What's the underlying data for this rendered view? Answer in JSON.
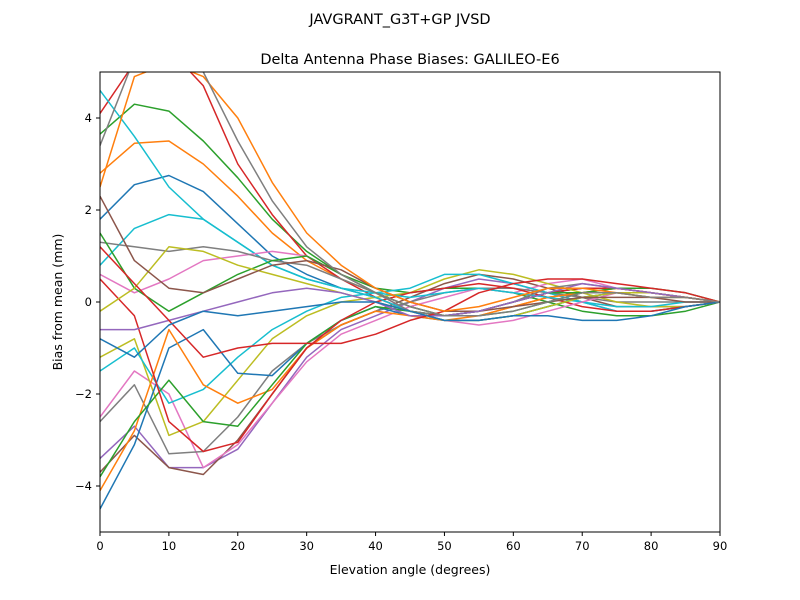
{
  "chart_data": {
    "type": "line",
    "suptitle": "JAVGRANT_G3T+GP JVSD",
    "title": "Delta Antenna Phase Biases: GALILEO-E6",
    "xlabel": "Elevation angle (degrees)",
    "ylabel": "Bias from mean (mm)",
    "xlim": [
      0,
      90
    ],
    "ylim": [
      -5,
      5
    ],
    "xticks": [
      0,
      10,
      20,
      30,
      40,
      50,
      60,
      70,
      80,
      90
    ],
    "yticks": [
      -4,
      -2,
      0,
      2,
      4
    ],
    "ytick_labels": [
      "−4",
      "−2",
      "0",
      "2",
      "4"
    ],
    "grid": false,
    "legend": "none",
    "x": [
      0,
      5,
      10,
      15,
      20,
      25,
      30,
      35,
      40,
      45,
      50,
      55,
      60,
      65,
      70,
      75,
      80,
      85,
      90
    ],
    "series": [
      {
        "color": "#1f77b4",
        "values": [
          1.8,
          2.55,
          2.75,
          2.4,
          1.7,
          1.0,
          0.6,
          0.3,
          0.1,
          -0.2,
          -0.3,
          -0.2,
          0,
          0.2,
          0.3,
          0.3,
          0.2,
          0.1,
          0
        ]
      },
      {
        "color": "#ff7f0e",
        "values": [
          2.8,
          3.45,
          3.5,
          3.0,
          2.3,
          1.5,
          0.9,
          0.5,
          0.2,
          -0.1,
          -0.3,
          -0.3,
          -0.1,
          0.1,
          0.2,
          0.3,
          0.2,
          0.1,
          0
        ]
      },
      {
        "color": "#2ca02c",
        "values": [
          3.65,
          4.3,
          4.15,
          3.5,
          2.7,
          1.8,
          1.1,
          0.6,
          0.3,
          0.2,
          0.3,
          0.3,
          0.2,
          0,
          -0.2,
          -0.3,
          -0.3,
          -0.2,
          0
        ]
      },
      {
        "color": "#d62728",
        "values": [
          4.1,
          5.2,
          5.5,
          4.7,
          3.0,
          1.9,
          1.0,
          0.5,
          0.1,
          -0.2,
          -0.3,
          -0.2,
          0,
          0.2,
          0.3,
          0.3,
          0.2,
          0.1,
          0
        ]
      },
      {
        "color": "#9467bd",
        "values": [
          -3.4,
          -2.7,
          -3.6,
          -3.6,
          -3.2,
          -2.2,
          -1.2,
          -0.6,
          -0.3,
          0,
          0.3,
          0.5,
          0.4,
          0.2,
          0,
          -0.2,
          -0.2,
          -0.1,
          0
        ]
      },
      {
        "color": "#8c564b",
        "values": [
          -3.7,
          -2.9,
          -3.6,
          -3.75,
          -3.0,
          -2.0,
          -1.0,
          -0.5,
          -0.2,
          0.1,
          0.4,
          0.6,
          0.5,
          0.3,
          0.1,
          -0.1,
          -0.1,
          -0.1,
          0
        ]
      },
      {
        "color": "#e377c2",
        "values": [
          -2.5,
          -1.5,
          -2.0,
          -3.6,
          -3.1,
          -2.2,
          -1.3,
          -0.7,
          -0.4,
          -0.1,
          0.1,
          0.3,
          0.2,
          0.4,
          0.5,
          0.3,
          0.2,
          0.1,
          0
        ]
      },
      {
        "color": "#7f7f7f",
        "values": [
          -2.6,
          -1.8,
          -3.3,
          -3.25,
          -2.5,
          -1.5,
          -0.9,
          -0.5,
          -0.2,
          0,
          0.2,
          0.3,
          0.3,
          0.2,
          0.1,
          0,
          0,
          0,
          0
        ]
      },
      {
        "color": "#bcbd22",
        "values": [
          -1.2,
          -0.8,
          -2.9,
          -2.6,
          -1.7,
          -0.8,
          -0.3,
          0,
          0.1,
          0.2,
          0.5,
          0.7,
          0.6,
          0.4,
          0.2,
          0,
          -0.1,
          -0.1,
          0
        ]
      },
      {
        "color": "#17becf",
        "values": [
          -1.5,
          -1.0,
          -2.2,
          -1.9,
          -1.2,
          -0.6,
          -0.2,
          0.1,
          0.2,
          0.3,
          0.6,
          0.6,
          0.4,
          0.2,
          0,
          -0.2,
          -0.2,
          -0.1,
          0
        ]
      },
      {
        "color": "#1f77b4",
        "values": [
          -4.5,
          -3.1,
          -1.0,
          -0.6,
          -1.55,
          -1.6,
          -0.9,
          -0.4,
          -0.1,
          -0.3,
          -0.4,
          -0.4,
          -0.3,
          -0.1,
          0.1,
          0.2,
          0.2,
          0.1,
          0
        ]
      },
      {
        "color": "#ff7f0e",
        "values": [
          -4.1,
          -2.8,
          -0.6,
          -1.8,
          -2.2,
          -1.9,
          -1.0,
          -0.5,
          -0.2,
          -0.3,
          -0.4,
          -0.3,
          -0.1,
          0.1,
          0.2,
          0.3,
          0.2,
          0.1,
          0
        ]
      },
      {
        "color": "#2ca02c",
        "values": [
          -3.8,
          -2.6,
          -1.7,
          -2.6,
          -2.7,
          -1.8,
          -0.9,
          -0.4,
          -0.1,
          -0.2,
          -0.3,
          -0.2,
          0,
          0.2,
          0.2,
          0.2,
          0.1,
          0.1,
          0
        ]
      },
      {
        "color": "#d62728",
        "values": [
          0.5,
          -0.3,
          -2.6,
          -3.25,
          -3.05,
          -2.0,
          -1.0,
          -0.4,
          0,
          0.2,
          0.3,
          0.4,
          0.3,
          0.1,
          -0.1,
          -0.2,
          -0.2,
          -0.1,
          0
        ]
      },
      {
        "color": "#17becf",
        "values": [
          4.6,
          3.6,
          2.5,
          1.8,
          1.3,
          0.8,
          0.5,
          0.3,
          0.1,
          -0.2,
          -0.4,
          -0.4,
          -0.3,
          -0.1,
          0.1,
          0.2,
          0.2,
          0.1,
          0
        ]
      },
      {
        "color": "#17becf",
        "values": [
          0.8,
          1.6,
          1.9,
          1.8,
          1.3,
          0.8,
          0.5,
          0.3,
          0.2,
          0.1,
          0.2,
          0.3,
          0.2,
          0.1,
          0,
          -0.1,
          -0.1,
          0,
          0
        ]
      },
      {
        "color": "#e377c2",
        "values": [
          0.6,
          0.2,
          0.5,
          0.9,
          1.0,
          1.1,
          1.0,
          0.6,
          0.2,
          -0.2,
          -0.4,
          -0.5,
          -0.4,
          -0.2,
          0,
          0.2,
          0.2,
          0.1,
          0
        ]
      },
      {
        "color": "#7f7f7f",
        "values": [
          1.3,
          1.2,
          1.1,
          1.2,
          1.1,
          0.9,
          0.8,
          0.5,
          0.2,
          -0.2,
          -0.3,
          -0.2,
          0,
          0.3,
          0.4,
          0.3,
          0.2,
          0.1,
          0
        ]
      },
      {
        "color": "#2ca02c",
        "values": [
          1.5,
          0.3,
          -0.2,
          0.2,
          0.6,
          0.9,
          1.0,
          0.6,
          0.2,
          -0.1,
          -0.3,
          -0.3,
          -0.2,
          0,
          0.2,
          0.3,
          0.3,
          0.2,
          0
        ]
      },
      {
        "color": "#bcbd22",
        "values": [
          -0.2,
          0.3,
          1.2,
          1.1,
          0.8,
          0.6,
          0.4,
          0.2,
          0,
          -0.2,
          -0.4,
          -0.4,
          -0.3,
          -0.1,
          0.1,
          0.2,
          0.2,
          0.1,
          0
        ]
      },
      {
        "color": "#8c564b",
        "values": [
          2.3,
          0.9,
          0.3,
          0.2,
          0.5,
          0.8,
          0.9,
          0.7,
          0.3,
          0,
          -0.2,
          -0.2,
          -0.1,
          0,
          0.1,
          0.1,
          0.1,
          0,
          0
        ]
      },
      {
        "color": "#9467bd",
        "values": [
          -0.6,
          -0.6,
          -0.4,
          -0.2,
          0,
          0.2,
          0.3,
          0.2,
          0,
          -0.3,
          -0.3,
          -0.2,
          0,
          0.2,
          0.4,
          0.3,
          0.2,
          0.1,
          0
        ]
      },
      {
        "color": "#d62728",
        "values": [
          1.2,
          0.4,
          -0.4,
          -1.2,
          -1.0,
          -0.9,
          -0.9,
          -0.9,
          -0.7,
          -0.4,
          -0.2,
          0.2,
          0.4,
          0.5,
          0.5,
          0.4,
          0.3,
          0.2,
          0
        ]
      },
      {
        "color": "#1f77b4",
        "values": [
          -0.8,
          -1.2,
          -0.5,
          -0.2,
          -0.3,
          -0.2,
          -0.1,
          0,
          0,
          -0.2,
          -0.4,
          -0.4,
          -0.3,
          -0.3,
          -0.4,
          -0.4,
          -0.3,
          -0.1,
          0
        ]
      },
      {
        "color": "#ff7f0e",
        "values": [
          2.5,
          4.9,
          5.2,
          4.9,
          4.0,
          2.6,
          1.5,
          0.8,
          0.3,
          0,
          -0.2,
          -0.1,
          0.1,
          0.3,
          0.3,
          0.2,
          0.1,
          0.1,
          0
        ]
      },
      {
        "color": "#7f7f7f",
        "values": [
          3.4,
          5.3,
          6.0,
          5.0,
          3.5,
          2.2,
          1.2,
          0.6,
          0.2,
          -0.1,
          -0.3,
          -0.3,
          -0.2,
          0,
          0.2,
          0.2,
          0.1,
          0.1,
          0
        ]
      }
    ]
  }
}
